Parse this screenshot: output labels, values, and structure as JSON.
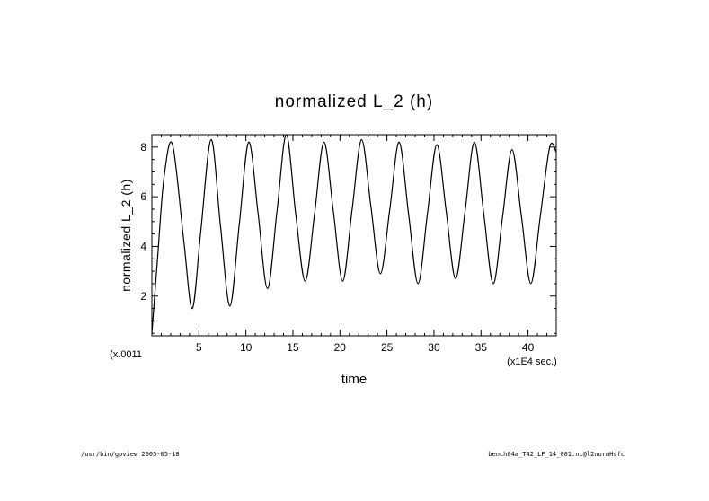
{
  "chart_data": {
    "type": "line",
    "title": "normalized L_2 (h)",
    "xlabel": "time",
    "ylabel": "normalized L_2 (h)",
    "x_units": "(x1E4 sec.)",
    "y_multiplier": "(x.0011",
    "xlim": [
      0,
      43
    ],
    "ylim": [
      0.4,
      8.5
    ],
    "x_ticks": [
      5,
      10,
      15,
      20,
      25,
      30,
      35,
      40
    ],
    "y_ticks": [
      2,
      4,
      6,
      8
    ],
    "grid": false,
    "series": [
      {
        "x": [
          0,
          0.6,
          1.3,
          2.2,
          3.4,
          4.3,
          5.2,
          6.3,
          7.3,
          8.3,
          9.3,
          10.3,
          11.3,
          12.3,
          13.3,
          14.3,
          15.3,
          16.3,
          17.3,
          18.3,
          19.3,
          20.3,
          21.3,
          22.3,
          23.3,
          24.3,
          25.3,
          26.3,
          27.3,
          28.3,
          29.3,
          30.3,
          31.3,
          32.3,
          33.3,
          34.3,
          35.3,
          36.3,
          37.3,
          38.3,
          39.3,
          40.3,
          41.3,
          42.3,
          43
        ],
        "y": [
          0.5,
          3.5,
          6.8,
          8.1,
          4.2,
          1.5,
          4.6,
          8.3,
          4.8,
          1.6,
          4.9,
          8.2,
          5.3,
          2.3,
          5.4,
          8.5,
          5.3,
          2.6,
          5.3,
          8.2,
          5.4,
          2.6,
          5.5,
          8.3,
          5.6,
          2.9,
          5.5,
          8.2,
          5.3,
          2.5,
          5.3,
          8.1,
          5.4,
          2.7,
          5.4,
          8.2,
          5.3,
          2.5,
          5.2,
          7.9,
          5.2,
          2.5,
          5.2,
          8.0,
          7.8
        ]
      }
    ]
  },
  "footer": {
    "left": "/usr/bin/gpview  2005-05-18",
    "right": "bench04a_T42_LF_14_001.nc@l2normHsfc"
  }
}
